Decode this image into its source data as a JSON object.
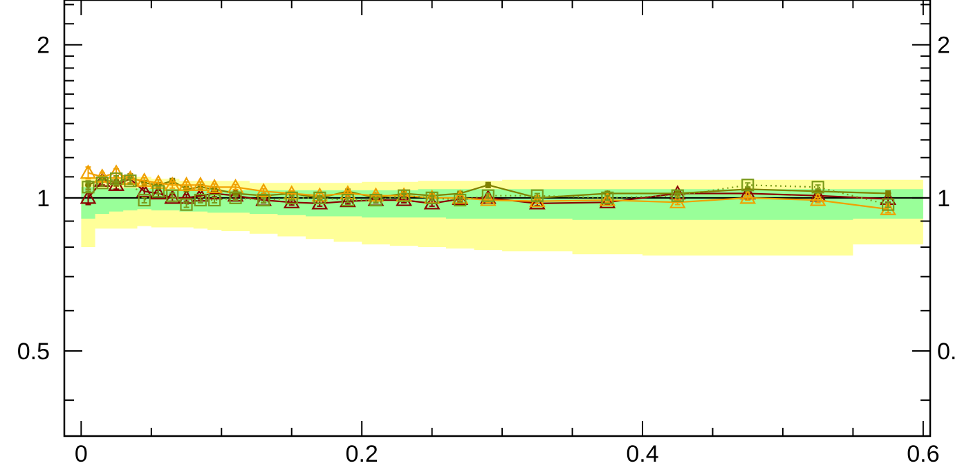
{
  "chart_data": {
    "type": "line",
    "title": "",
    "xlabel": "",
    "ylabel": "",
    "xlim": [
      -0.012,
      0.605
    ],
    "ylim": [
      0.34,
      2.45
    ],
    "yscale": "log",
    "x_ticks": [
      0,
      0.2,
      0.4,
      0.6
    ],
    "x_tick_labels": [
      "0",
      "0.2",
      "0.4",
      "0.6"
    ],
    "y_ticks": [
      0.5,
      1,
      2
    ],
    "y_tick_labels": [
      "0.5",
      "1",
      "2"
    ],
    "y_tick_labels_right": [
      "0.",
      "1",
      "2"
    ],
    "reference_line": 1,
    "grid": false,
    "colors": {
      "band_outer": "#ffff99",
      "band_inner": "#99ff99",
      "dark_red": "#8b0000",
      "olive": "#808000",
      "orange": "#f0a000",
      "green_square": "#7a9a1a"
    },
    "bin_edges": [
      0,
      0.01,
      0.02,
      0.03,
      0.04,
      0.05,
      0.06,
      0.07,
      0.08,
      0.09,
      0.1,
      0.12,
      0.14,
      0.16,
      0.18,
      0.2,
      0.22,
      0.24,
      0.26,
      0.28,
      0.3,
      0.35,
      0.4,
      0.45,
      0.5,
      0.55,
      0.6
    ],
    "band_outer_low": [
      0.8,
      0.87,
      0.87,
      0.87,
      0.88,
      0.875,
      0.875,
      0.875,
      0.87,
      0.865,
      0.86,
      0.85,
      0.84,
      0.83,
      0.82,
      0.81,
      0.805,
      0.8,
      0.795,
      0.79,
      0.785,
      0.775,
      0.77,
      0.77,
      0.77,
      0.81
    ],
    "band_outer_high": [
      1.1,
      1.09,
      1.1,
      1.1,
      1.1,
      1.09,
      1.09,
      1.08,
      1.08,
      1.08,
      1.08,
      1.07,
      1.07,
      1.07,
      1.07,
      1.075,
      1.075,
      1.08,
      1.08,
      1.08,
      1.085,
      1.085,
      1.085,
      1.085,
      1.085,
      1.085
    ],
    "band_inner_low": [
      0.91,
      0.93,
      0.94,
      0.945,
      0.95,
      0.945,
      0.945,
      0.94,
      0.94,
      0.935,
      0.935,
      0.93,
      0.925,
      0.92,
      0.92,
      0.915,
      0.915,
      0.915,
      0.91,
      0.91,
      0.91,
      0.905,
      0.905,
      0.905,
      0.905,
      0.91
    ],
    "band_inner_high": [
      1.05,
      1.045,
      1.045,
      1.045,
      1.045,
      1.045,
      1.04,
      1.04,
      1.04,
      1.04,
      1.035,
      1.035,
      1.035,
      1.035,
      1.035,
      1.035,
      1.035,
      1.04,
      1.04,
      1.04,
      1.04,
      1.04,
      1.04,
      1.04,
      1.04,
      1.04
    ],
    "series": [
      {
        "color": "#8b0000",
        "marker": "triangle-open",
        "line": "solid",
        "x": [
          0.005,
          0.015,
          0.025,
          0.035,
          0.045,
          0.055,
          0.065,
          0.075,
          0.085,
          0.095,
          0.11,
          0.13,
          0.15,
          0.17,
          0.19,
          0.21,
          0.23,
          0.25,
          0.27,
          0.29,
          0.325,
          0.375,
          0.425,
          0.475,
          0.525,
          0.575
        ],
        "y": [
          1.0,
          1.08,
          1.06,
          1.09,
          1.03,
          1.02,
          1.0,
          1.0,
          1.01,
          1.02,
          1.01,
          0.99,
          0.98,
          0.975,
          0.985,
          0.99,
          0.99,
          0.975,
          0.995,
          1.0,
          0.975,
          0.98,
          1.02,
          1.02,
          1.01,
          0.995
        ],
        "err": [
          0.03,
          0.02,
          0.02,
          0.02,
          0.015,
          0.015,
          0.015,
          0.015,
          0.015,
          0.015,
          0.012,
          0.012,
          0.012,
          0.012,
          0.012,
          0.012,
          0.012,
          0.012,
          0.012,
          0.012,
          0.01,
          0.01,
          0.01,
          0.01,
          0.012,
          0.015
        ]
      },
      {
        "color": "#808000",
        "marker": "dot",
        "line": "solid",
        "x": [
          0.005,
          0.015,
          0.025,
          0.035,
          0.045,
          0.055,
          0.065,
          0.075,
          0.085,
          0.095,
          0.11,
          0.13,
          0.15,
          0.17,
          0.19,
          0.21,
          0.23,
          0.25,
          0.27,
          0.29,
          0.325,
          0.375,
          0.425,
          0.475,
          0.525,
          0.575
        ],
        "y": [
          1.06,
          1.09,
          1.07,
          1.1,
          1.07,
          1.06,
          1.08,
          1.04,
          1.05,
          1.04,
          1.02,
          1.01,
          1.02,
          1.0,
          1.03,
          1.0,
          1.02,
          1.01,
          1.02,
          1.06,
          1.0,
          1.02,
          1.02,
          1.04,
          1.03,
          1.02
        ],
        "err": [
          0.02,
          0.015,
          0.015,
          0.015,
          0.012,
          0.012,
          0.012,
          0.012,
          0.012,
          0.012,
          0.01,
          0.01,
          0.01,
          0.01,
          0.01,
          0.01,
          0.01,
          0.01,
          0.01,
          0.012,
          0.01,
          0.01,
          0.01,
          0.01,
          0.01,
          0.012
        ]
      },
      {
        "color": "#f0a000",
        "marker": "triangle-open",
        "line": "solid",
        "x": [
          0.005,
          0.015,
          0.025,
          0.035,
          0.045,
          0.055,
          0.065,
          0.075,
          0.085,
          0.095,
          0.11,
          0.13,
          0.15,
          0.17,
          0.19,
          0.21,
          0.23,
          0.25,
          0.27,
          0.29,
          0.325,
          0.375,
          0.425,
          0.475,
          0.525,
          0.575
        ],
        "y": [
          1.12,
          1.1,
          1.12,
          1.09,
          1.08,
          1.07,
          1.06,
          1.06,
          1.06,
          1.05,
          1.05,
          1.03,
          1.02,
          1.01,
          1.02,
          1.01,
          1.01,
          1.0,
          1.0,
          0.99,
          0.985,
          0.99,
          0.98,
          1.0,
          0.99,
          0.95
        ],
        "err": [
          0.03,
          0.02,
          0.02,
          0.02,
          0.015,
          0.015,
          0.015,
          0.015,
          0.015,
          0.015,
          0.012,
          0.012,
          0.012,
          0.012,
          0.012,
          0.012,
          0.012,
          0.012,
          0.012,
          0.012,
          0.01,
          0.01,
          0.01,
          0.01,
          0.012,
          0.015
        ]
      },
      {
        "color": "#7a9a1a",
        "marker": "square-open",
        "line": "dotted",
        "x": [
          0.005,
          0.015,
          0.025,
          0.035,
          0.045,
          0.055,
          0.065,
          0.075,
          0.085,
          0.095,
          0.11,
          0.13,
          0.15,
          0.17,
          0.19,
          0.21,
          0.23,
          0.25,
          0.27,
          0.29,
          0.325,
          0.375,
          0.425,
          0.475,
          0.525,
          0.575
        ],
        "y": [
          1.05,
          1.07,
          1.09,
          1.08,
          0.99,
          1.03,
          1.01,
          0.97,
          0.99,
          0.99,
          1.0,
          0.99,
          1.0,
          1.0,
          0.99,
          0.99,
          1.01,
          1.0,
          0.99,
          1.01,
          1.01,
          1.0,
          1.01,
          1.06,
          1.05,
          0.97
        ],
        "err": [
          0.02,
          0.015,
          0.015,
          0.015,
          0.012,
          0.012,
          0.012,
          0.012,
          0.012,
          0.012,
          0.01,
          0.01,
          0.01,
          0.01,
          0.01,
          0.01,
          0.01,
          0.01,
          0.01,
          0.01,
          0.01,
          0.01,
          0.01,
          0.01,
          0.01,
          0.012
        ]
      }
    ]
  }
}
